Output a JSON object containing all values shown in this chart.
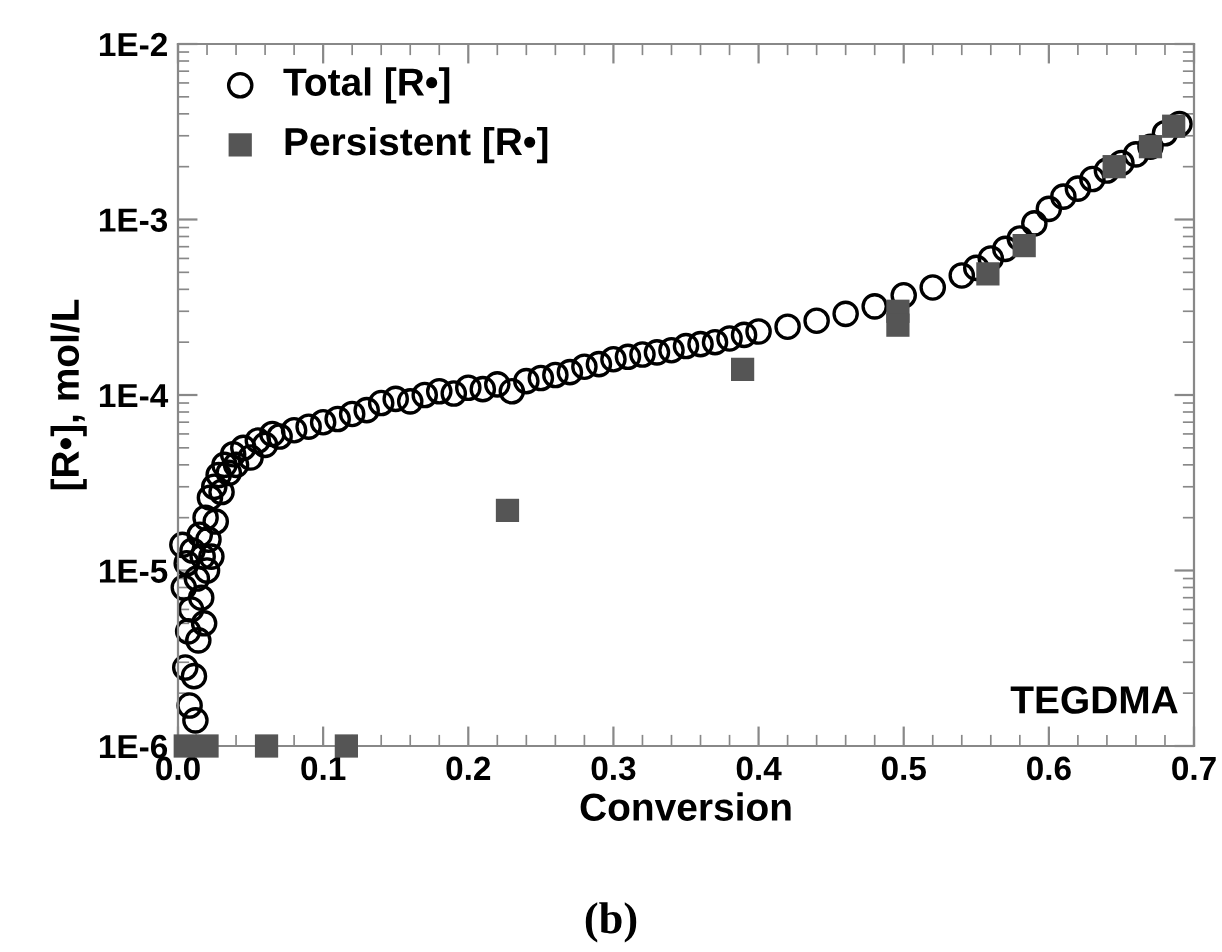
{
  "chart_data": {
    "type": "scatter",
    "xlabel": "Conversion",
    "ylabel": "[R•], mol/L",
    "log": "y",
    "xlim": [
      0,
      0.7
    ],
    "xticks": [
      {
        "value": 0,
        "label": "0.0"
      },
      0.1,
      0.2,
      0.3,
      0.4,
      0.5,
      0.6,
      0.7
    ],
    "ylim": [
      1e-06,
      0.01
    ],
    "yticks": [
      {
        "value": 1e-06,
        "label": "1E-6"
      },
      {
        "value": 1e-05,
        "label": "1E-5"
      },
      {
        "value": 0.0001,
        "label": "1E-4"
      },
      {
        "value": 0.001,
        "label": "1E-3"
      },
      {
        "value": 0.01,
        "label": "1E-2"
      }
    ],
    "legend": "top left",
    "grid": false,
    "annotations": [
      "TEGDMA",
      "(b)"
    ],
    "series": [
      {
        "name": "Total [R•]",
        "color": "#000000",
        "marker": "circle",
        "x": [
          0.003,
          0.004,
          0.005,
          0.006,
          0.007,
          0.008,
          0.009,
          0.01,
          0.011,
          0.012,
          0.013,
          0.014,
          0.015,
          0.016,
          0.017,
          0.018,
          0.019,
          0.02,
          0.021,
          0.022,
          0.023,
          0.025,
          0.026,
          0.028,
          0.03,
          0.032,
          0.035,
          0.038,
          0.04,
          0.045,
          0.05,
          0.055,
          0.06,
          0.065,
          0.07,
          0.08,
          0.09,
          0.1,
          0.11,
          0.12,
          0.13,
          0.14,
          0.15,
          0.16,
          0.17,
          0.18,
          0.19,
          0.2,
          0.21,
          0.22,
          0.23,
          0.24,
          0.25,
          0.26,
          0.27,
          0.28,
          0.29,
          0.3,
          0.31,
          0.32,
          0.33,
          0.34,
          0.35,
          0.36,
          0.37,
          0.38,
          0.39,
          0.4,
          0.42,
          0.44,
          0.46,
          0.48,
          0.5,
          0.52,
          0.54,
          0.55,
          0.56,
          0.57,
          0.58,
          0.59,
          0.6,
          0.61,
          0.62,
          0.63,
          0.64,
          0.65,
          0.66,
          0.67,
          0.68,
          0.69
        ],
        "values": [
          1.4e-05,
          8e-06,
          2.8e-06,
          1.1e-05,
          4.5e-06,
          1.7e-06,
          6e-06,
          1.3e-05,
          2.5e-06,
          1.4e-06,
          9e-06,
          4e-06,
          1.6e-05,
          7e-06,
          1.2e-05,
          5e-06,
          2e-05,
          1e-05,
          1.5e-05,
          2.6e-05,
          1.2e-05,
          3e-05,
          1.9e-05,
          3.5e-05,
          2.8e-05,
          4e-05,
          3.6e-05,
          4.6e-05,
          4e-05,
          5e-05,
          4.4e-05,
          5.5e-05,
          5.2e-05,
          6e-05,
          5.8e-05,
          6.3e-05,
          6.6e-05,
          7e-05,
          7.3e-05,
          7.8e-05,
          8.2e-05,
          9e-05,
          9.5e-05,
          9.2e-05,
          0.0001,
          0.000105,
          0.000102,
          0.00011,
          0.000108,
          0.000115,
          0.000105,
          0.00012,
          0.000125,
          0.00013,
          0.000135,
          0.000145,
          0.00015,
          0.00016,
          0.000165,
          0.00017,
          0.000175,
          0.00018,
          0.00019,
          0.000195,
          0.0002,
          0.00021,
          0.00022,
          0.00023,
          0.000245,
          0.000265,
          0.00029,
          0.00032,
          0.00037,
          0.00041,
          0.00048,
          0.00053,
          0.0006,
          0.00068,
          0.00078,
          0.00095,
          0.00115,
          0.00135,
          0.0015,
          0.0017,
          0.0019,
          0.0021,
          0.00235,
          0.0026,
          0.0031,
          0.0035
        ]
      },
      {
        "name": "Persistent [R•]",
        "color": "#555555",
        "marker": "square",
        "x": [
          0.005,
          0.02,
          0.061,
          0.116,
          0.227,
          0.389,
          0.496,
          0.496,
          0.558,
          0.583,
          0.645,
          0.67,
          0.686
        ],
        "values": [
          1e-06,
          1e-06,
          1e-06,
          1e-06,
          2.2e-05,
          0.00014,
          0.0003,
          0.00025,
          0.00049,
          0.00071,
          0.002,
          0.0026,
          0.0034
        ]
      }
    ]
  }
}
